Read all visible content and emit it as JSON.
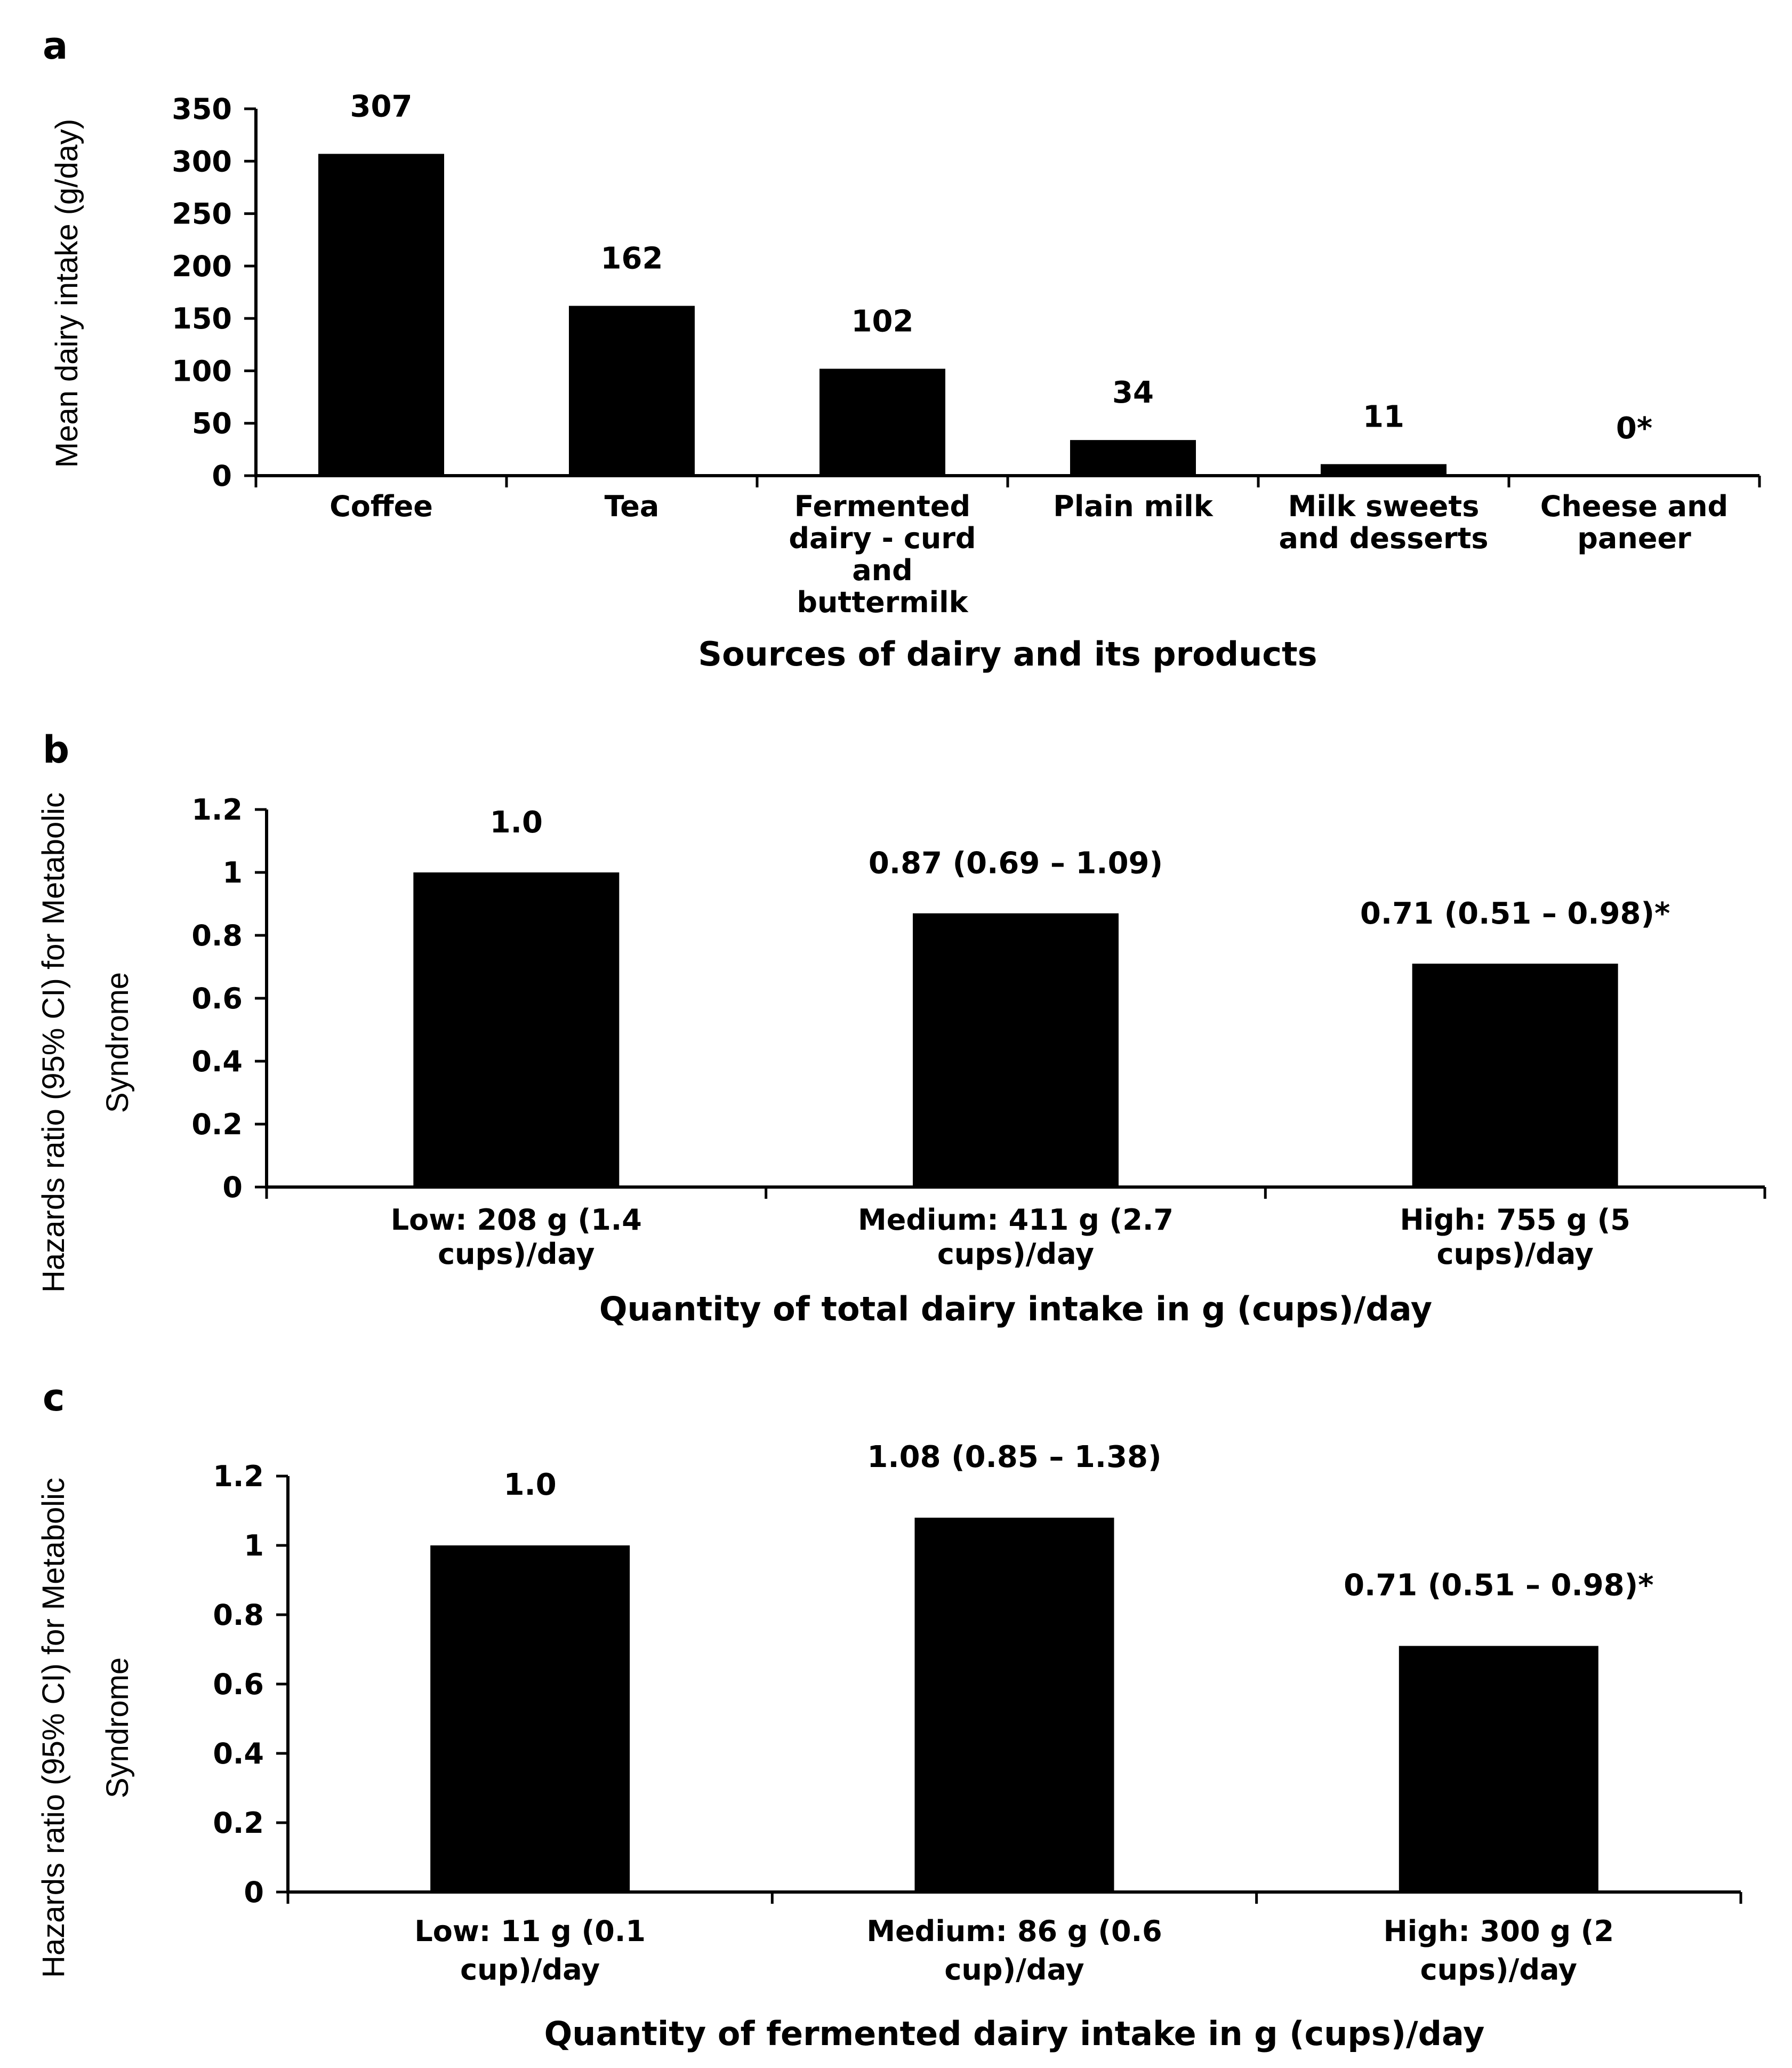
{
  "chart_data": [
    {
      "type": "bar",
      "panel_label": "a",
      "categories": [
        "Coffee",
        "Tea",
        "Fermented dairy - curd and buttermilk",
        "Plain milk",
        "Milk sweets and desserts",
        "Cheese and paneer"
      ],
      "category_lines": [
        [
          "Coffee"
        ],
        [
          "Tea"
        ],
        [
          "Fermented",
          "dairy - curd",
          "and",
          "buttermilk"
        ],
        [
          "Plain milk"
        ],
        [
          "Milk sweets",
          "and desserts"
        ],
        [
          "Cheese and",
          "paneer"
        ]
      ],
      "values": [
        307,
        162,
        102,
        34,
        11,
        0
      ],
      "data_labels": [
        "307",
        "162",
        "102",
        "34",
        "11",
        "0*"
      ],
      "ylim": [
        0,
        350
      ],
      "yticks": [
        "0",
        "50",
        "100",
        "150",
        "200",
        "250",
        "300",
        "350"
      ],
      "ylabel_lines": [
        "Mean dairy intake (g/day)"
      ],
      "xlabel": "Sources of dairy and its products"
    },
    {
      "type": "bar",
      "panel_label": "b",
      "categories": [
        "Low: 208 g (1.4 cups)/day",
        "Medium: 411 g (2.7 cups)/day",
        "High: 755 g (5 cups)/day"
      ],
      "category_lines": [
        [
          "Low: 208 g (1.4",
          "cups)/day"
        ],
        [
          "Medium: 411 g (2.7",
          "cups)/day"
        ],
        [
          "High: 755 g (5",
          "cups)/day"
        ]
      ],
      "values": [
        1.0,
        0.87,
        0.71
      ],
      "data_labels": [
        "1.0",
        "0.87 (0.69 – 1.09)",
        "0.71 (0.51 – 0.98)*"
      ],
      "ylim": [
        0,
        1.2
      ],
      "yticks": [
        "0",
        "0.2",
        "0.4",
        "0.6",
        "0.8",
        "1",
        "1.2"
      ],
      "ylabel_lines": [
        "Hazards ratio (95% CI) for Metabolic",
        "Syndrome"
      ],
      "xlabel": "Quantity of total dairy intake in g (cups)/day"
    },
    {
      "type": "bar",
      "panel_label": "c",
      "categories": [
        "Low: 11 g (0.1 cup)/day",
        "Medium: 86 g (0.6 cup)/day",
        "High: 300 g (2 cups)/day"
      ],
      "category_lines": [
        [
          "Low: 11 g (0.1",
          "cup)/day"
        ],
        [
          "Medium: 86 g (0.6",
          "cup)/day"
        ],
        [
          "High: 300 g (2",
          "cups)/day"
        ]
      ],
      "values": [
        1.0,
        1.08,
        0.71
      ],
      "data_labels": [
        "1.0",
        "1.08 (0.85 – 1.38)",
        "0.71 (0.51 –  0.98)*"
      ],
      "ylim": [
        0,
        1.2
      ],
      "yticks": [
        "0",
        "0.2",
        "0.4",
        "0.6",
        "0.8",
        "1",
        "1.2"
      ],
      "ylabel_lines": [
        "Hazards ratio (95% CI) for Metabolic",
        "Syndrome"
      ],
      "xlabel": "Quantity of fermented dairy intake in g (cups)/day"
    }
  ]
}
